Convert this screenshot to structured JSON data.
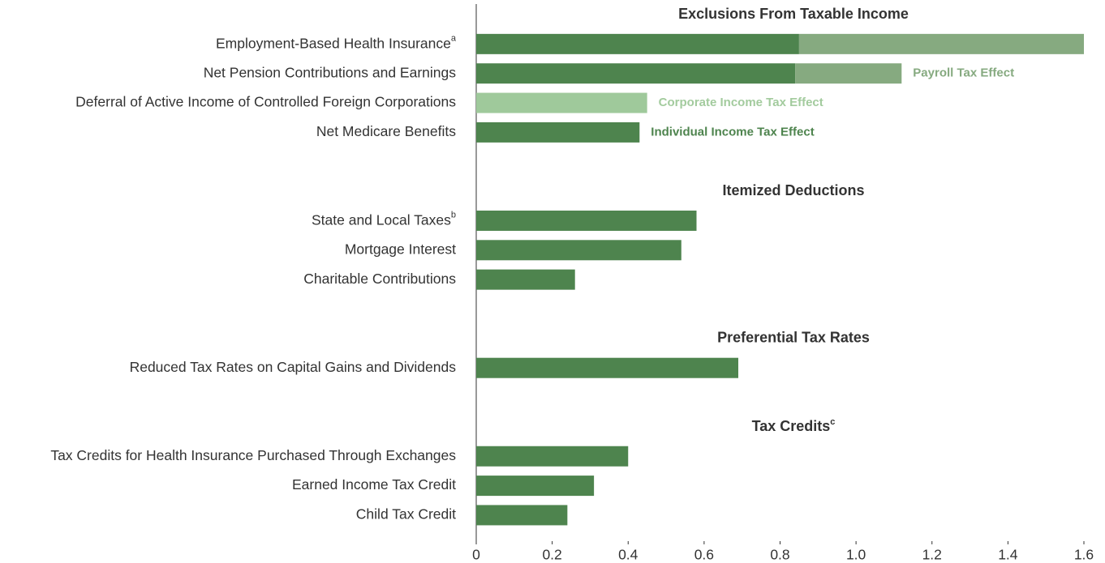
{
  "chart_data": {
    "type": "bar",
    "orientation": "horizontal",
    "stacked": true,
    "groups": [
      {
        "title": "Exclusions From Taxable Income",
        "note": null,
        "categories": [
          "Employment-Based Health Insurance",
          "Net Pension Contributions and Earnings",
          "Deferral of Active Income of Controlled Foreign Corporations",
          "Net Medicare Benefits"
        ],
        "notes": [
          "a",
          null,
          null,
          null
        ]
      },
      {
        "title": "Itemized Deductions",
        "note": null,
        "categories": [
          "State and Local Taxes",
          "Mortgage Interest",
          "Charitable Contributions"
        ],
        "notes": [
          "b",
          null,
          null
        ]
      },
      {
        "title": "Preferential Tax Rates",
        "note": null,
        "categories": [
          "Reduced Tax Rates on Capital Gains and Dividends"
        ],
        "notes": [
          null
        ]
      },
      {
        "title": "Tax Credits",
        "note": "c",
        "categories": [
          "Tax Credits for Health Insurance Purchased Through Exchanges",
          "Earned Income Tax Credit",
          "Child Tax Credit"
        ],
        "notes": [
          null,
          null,
          null
        ]
      }
    ],
    "series": [
      {
        "name": "Individual Income Tax Effect",
        "color": "#4e844e",
        "label_color": "#4e844e",
        "values": [
          0.85,
          0.84,
          null,
          0.43,
          0.58,
          0.54,
          0.26,
          0.69,
          0.4,
          0.31,
          0.24
        ]
      },
      {
        "name": "Corporate Income Tax Effect",
        "color": "#9fc99b",
        "label_color": "#a3cb9e",
        "values": [
          null,
          null,
          0.45,
          null,
          null,
          null,
          null,
          null,
          null,
          null,
          null
        ]
      },
      {
        "name": "Payroll Tax Effect",
        "color": "#86aa80",
        "label_color": "#86aa80",
        "values": [
          0.75,
          0.28,
          null,
          null,
          null,
          null,
          null,
          null,
          null,
          null,
          null
        ]
      }
    ],
    "xlim": [
      0,
      1.6
    ],
    "xticks": [
      0,
      0.2,
      0.4,
      0.6,
      0.8,
      {
        "value": 1,
        "label": "1.0"
      },
      1.2,
      1.4,
      1.6
    ]
  }
}
